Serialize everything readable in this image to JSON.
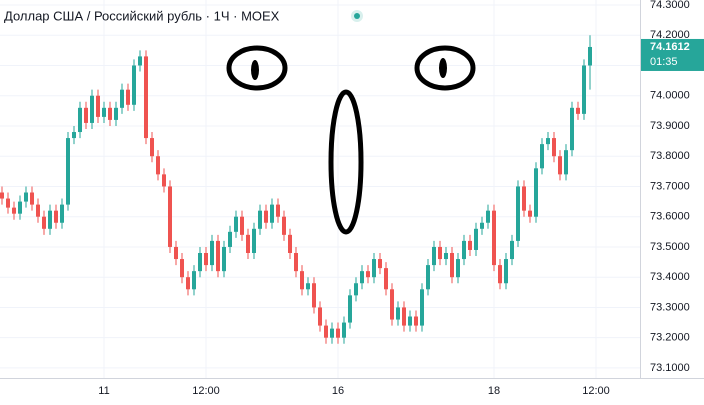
{
  "chart_data": {
    "type": "candlestick",
    "title": "Доллар США / Российский рубль · 1Ч · MOEX",
    "categories": [
      null,
      null,
      null,
      null,
      null,
      null,
      null,
      null,
      null,
      null,
      null,
      null,
      null,
      null,
      null,
      null,
      null,
      "11",
      null,
      null,
      null,
      null,
      null,
      null,
      null,
      null,
      null,
      null,
      null,
      null,
      null,
      null,
      null,
      null,
      "12:00",
      null,
      null,
      null,
      null,
      null,
      null,
      null,
      null,
      null,
      null,
      null,
      null,
      null,
      null,
      null,
      null,
      null,
      null,
      null,
      null,
      null,
      "16",
      null,
      null,
      null,
      null,
      null,
      null,
      null,
      null,
      null,
      null,
      null,
      null,
      null,
      null,
      null,
      null,
      null,
      null,
      null,
      null,
      null,
      null,
      null,
      null,
      null,
      "18",
      null,
      null,
      null,
      null,
      null,
      null,
      null,
      null,
      null,
      null,
      null,
      null,
      null,
      null,
      null,
      null,
      "12:00"
    ],
    "open": [
      73.68,
      73.66,
      73.63,
      73.61,
      73.65,
      73.68,
      73.64,
      73.6,
      73.56,
      73.62,
      73.58,
      73.64,
      73.86,
      73.88,
      73.96,
      73.91,
      74.0,
      73.93,
      73.96,
      73.92,
      73.96,
      74.02,
      73.97,
      74.1,
      74.13,
      73.86,
      73.8,
      73.74,
      73.7,
      73.5,
      73.46,
      73.4,
      73.36,
      73.42,
      73.48,
      73.44,
      73.52,
      73.42,
      73.5,
      73.55,
      73.6,
      73.54,
      73.48,
      73.56,
      73.62,
      73.58,
      73.64,
      73.6,
      73.54,
      73.48,
      73.42,
      73.36,
      73.38,
      73.3,
      73.24,
      73.2,
      73.23,
      73.2,
      73.25,
      73.34,
      73.38,
      73.42,
      73.4,
      73.46,
      73.43,
      73.36,
      73.26,
      73.3,
      73.24,
      73.27,
      73.24,
      73.36,
      73.44,
      73.5,
      73.46,
      73.48,
      73.4,
      73.46,
      73.52,
      73.49,
      73.56,
      73.58,
      73.62,
      73.44,
      73.38,
      73.46,
      73.52,
      73.7,
      73.62,
      73.6,
      73.76,
      73.84,
      73.86,
      73.8,
      73.74,
      73.82,
      73.96,
      73.94,
      74.1,
      null
    ],
    "high": [
      73.7,
      73.68,
      73.65,
      73.67,
      73.7,
      73.7,
      73.66,
      73.62,
      73.64,
      73.64,
      73.66,
      73.88,
      73.9,
      73.98,
      73.98,
      74.02,
      74.02,
      73.98,
      73.98,
      73.98,
      74.04,
      74.04,
      74.12,
      74.15,
      74.15,
      73.88,
      73.82,
      73.76,
      73.72,
      73.52,
      73.48,
      73.42,
      73.44,
      73.5,
      73.5,
      73.54,
      73.54,
      73.52,
      73.57,
      73.62,
      73.62,
      73.56,
      73.58,
      73.64,
      73.64,
      73.66,
      73.66,
      73.62,
      73.56,
      73.5,
      73.44,
      73.4,
      73.4,
      73.32,
      73.26,
      73.25,
      73.25,
      73.27,
      73.36,
      73.4,
      73.44,
      73.44,
      73.48,
      73.48,
      73.45,
      73.38,
      73.32,
      73.32,
      73.29,
      73.29,
      73.38,
      73.46,
      73.52,
      73.52,
      73.5,
      73.5,
      73.48,
      73.54,
      73.54,
      73.58,
      73.6,
      73.64,
      73.64,
      73.46,
      73.48,
      73.54,
      73.72,
      73.72,
      73.64,
      73.78,
      73.86,
      73.88,
      73.88,
      73.82,
      73.84,
      73.98,
      73.98,
      74.12,
      74.2,
      null
    ],
    "low": [
      73.64,
      73.61,
      73.59,
      73.59,
      73.63,
      73.62,
      73.58,
      73.54,
      73.54,
      73.56,
      73.56,
      73.62,
      73.84,
      73.86,
      73.89,
      73.89,
      73.91,
      73.91,
      73.9,
      73.9,
      73.94,
      73.95,
      73.95,
      74.08,
      73.84,
      73.78,
      73.72,
      73.68,
      73.48,
      73.44,
      73.38,
      73.34,
      73.34,
      73.4,
      73.42,
      73.42,
      73.4,
      73.4,
      73.48,
      73.53,
      73.52,
      73.46,
      73.46,
      73.54,
      73.56,
      73.56,
      73.58,
      73.52,
      73.46,
      73.4,
      73.34,
      73.34,
      73.28,
      73.22,
      73.18,
      73.18,
      73.18,
      73.18,
      73.23,
      73.32,
      73.36,
      73.38,
      73.38,
      73.41,
      73.34,
      73.24,
      73.24,
      73.22,
      73.22,
      73.22,
      73.22,
      73.34,
      73.42,
      73.44,
      73.44,
      73.38,
      73.38,
      73.44,
      73.47,
      73.47,
      73.54,
      73.56,
      73.42,
      73.36,
      73.36,
      73.44,
      73.5,
      73.6,
      73.58,
      73.58,
      73.74,
      73.82,
      73.78,
      73.72,
      73.72,
      73.8,
      73.92,
      73.92,
      74.02,
      null
    ],
    "close": [
      73.66,
      73.63,
      73.61,
      73.65,
      73.68,
      73.64,
      73.6,
      73.56,
      73.62,
      73.58,
      73.64,
      73.86,
      73.88,
      73.96,
      73.91,
      74.0,
      73.93,
      73.96,
      73.92,
      73.96,
      74.02,
      73.97,
      74.1,
      74.13,
      73.86,
      73.8,
      73.74,
      73.7,
      73.5,
      73.46,
      73.4,
      73.36,
      73.42,
      73.48,
      73.44,
      73.52,
      73.42,
      73.5,
      73.55,
      73.6,
      73.54,
      73.48,
      73.56,
      73.62,
      73.58,
      73.64,
      73.6,
      73.54,
      73.48,
      73.42,
      73.36,
      73.38,
      73.3,
      73.24,
      73.2,
      73.23,
      73.2,
      73.25,
      73.34,
      73.38,
      73.42,
      73.4,
      73.46,
      73.43,
      73.36,
      73.26,
      73.3,
      73.24,
      73.27,
      73.24,
      73.36,
      73.44,
      73.5,
      73.46,
      73.48,
      73.4,
      73.46,
      73.52,
      73.49,
      73.56,
      73.58,
      73.62,
      73.44,
      73.38,
      73.46,
      73.52,
      73.7,
      73.62,
      73.6,
      73.76,
      73.84,
      73.86,
      73.8,
      73.74,
      73.82,
      73.96,
      73.94,
      74.1,
      74.1612,
      null
    ],
    "up_color": "#26a69a",
    "down_color": "#ef5350",
    "ylim": [
      73.0667,
      74.3165
    ],
    "yticks": [
      {
        "value": 73.1,
        "label": "73.1000"
      },
      {
        "value": 73.2,
        "label": "73.2000"
      },
      {
        "value": 73.3,
        "label": "73.3000"
      },
      {
        "value": 73.4,
        "label": "73.4000"
      },
      {
        "value": 73.5,
        "label": "73.5000"
      },
      {
        "value": 73.6,
        "label": "73.6000"
      },
      {
        "value": 73.7,
        "label": "73.7000"
      },
      {
        "value": 73.8,
        "label": "73.8000"
      },
      {
        "value": 73.9,
        "label": "73.9000"
      },
      {
        "value": 74.0,
        "label": "74.0000"
      },
      {
        "value": 74.1,
        "label": "74.1000"
      },
      {
        "value": 74.2,
        "label": "74.2000"
      },
      {
        "value": 74.3,
        "label": "74.3000"
      }
    ],
    "last_price": {
      "value": 74.1612,
      "label": "74.1612"
    },
    "countdown": "01:35",
    "grid": true
  }
}
